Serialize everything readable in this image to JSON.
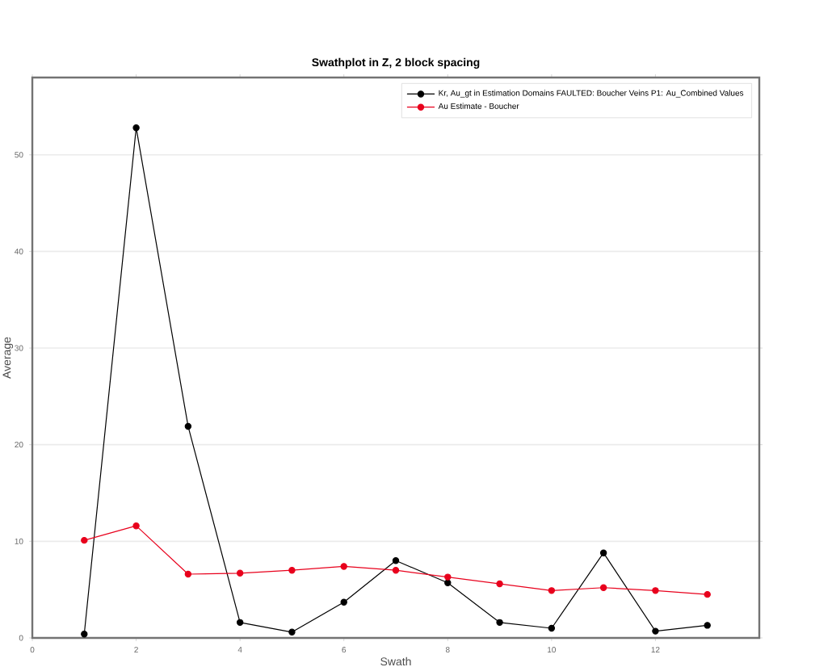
{
  "chart_data": {
    "type": "line",
    "title": "Swathplot in Z, 2 block spacing",
    "xlabel": "Swath",
    "ylabel": "Average",
    "x": [
      1,
      2,
      3,
      4,
      5,
      6,
      7,
      8,
      9,
      10,
      11,
      12,
      13
    ],
    "series": [
      {
        "name": "Kr, Au_gt in Estimation Domains FAULTED: Boucher Veins P1: Au_Combined Values",
        "color": "#000000",
        "values": [
          0.4,
          52.8,
          21.9,
          1.6,
          0.6,
          3.7,
          8.0,
          5.7,
          1.6,
          1.0,
          8.8,
          0.7,
          1.3
        ]
      },
      {
        "name": "Au Estimate - Boucher",
        "color": "#e8001c",
        "values": [
          10.1,
          11.6,
          6.6,
          6.7,
          7.0,
          7.4,
          7.0,
          6.3,
          5.6,
          4.9,
          5.2,
          4.9,
          4.5
        ]
      }
    ],
    "xlim": [
      0,
      14
    ],
    "ylim": [
      0,
      58
    ],
    "xticks": [
      0,
      2,
      4,
      6,
      8,
      10,
      12
    ],
    "yticks": [
      0,
      10,
      20,
      30,
      40,
      50
    ],
    "grid": "y",
    "legend": "top right",
    "marker": "circle",
    "line_style": "solid"
  }
}
